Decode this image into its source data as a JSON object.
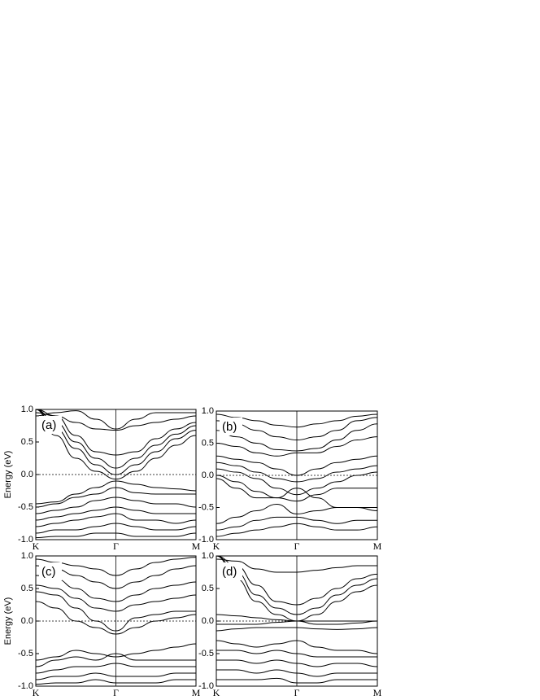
{
  "chart_data": [
    {
      "type": "line",
      "panel_label": "(a)",
      "ylabel": "Energy (eV)",
      "color": "#000000",
      "x": [
        0,
        0.25,
        0.5,
        0.75,
        1,
        1.25,
        1.5,
        1.75,
        2
      ],
      "xlim": [
        0,
        2
      ],
      "xticks": [
        {
          "value": 0,
          "label": "K"
        },
        {
          "value": 1,
          "label": "Γ"
        },
        {
          "value": 2,
          "label": "M"
        }
      ],
      "ylim": [
        -1,
        1
      ],
      "yticks": [
        {
          "value": -1,
          "label": "-1.0"
        },
        -0.5,
        {
          "value": 0,
          "label": "0.0"
        },
        0.5,
        {
          "value": 1,
          "label": "1.0"
        }
      ],
      "reference_line": 0,
      "series": [
        {
          "values": [
            1.0,
            0.6,
            0.25,
            0.05,
            -0.07,
            0.05,
            0.25,
            0.45,
            0.6
          ]
        },
        {
          "values": [
            1.0,
            0.7,
            0.4,
            0.15,
            0.0,
            0.15,
            0.35,
            0.55,
            0.68
          ]
        },
        {
          "values": [
            1.0,
            0.8,
            0.5,
            0.25,
            0.1,
            0.25,
            0.45,
            0.62,
            0.75
          ]
        },
        {
          "values": [
            1.0,
            0.9,
            0.6,
            0.35,
            0.3,
            0.35,
            0.55,
            0.7,
            0.8
          ]
        },
        {
          "values": [
            0.95,
            0.9,
            0.8,
            0.7,
            0.68,
            0.75,
            0.8,
            0.85,
            0.9
          ]
        },
        {
          "values": [
            0.9,
            0.95,
            0.98,
            0.85,
            0.7,
            0.85,
            0.95,
            0.95,
            0.95
          ]
        },
        {
          "values": [
            -0.45,
            -0.42,
            -0.3,
            -0.2,
            -0.1,
            -0.15,
            -0.2,
            -0.22,
            -0.25
          ]
        },
        {
          "values": [
            -0.5,
            -0.45,
            -0.35,
            -0.3,
            -0.2,
            -0.28,
            -0.3,
            -0.3,
            -0.3
          ]
        },
        {
          "values": [
            -0.6,
            -0.55,
            -0.5,
            -0.4,
            -0.35,
            -0.4,
            -0.45,
            -0.45,
            -0.5
          ]
        },
        {
          "values": [
            -0.7,
            -0.65,
            -0.6,
            -0.55,
            -0.5,
            -0.55,
            -0.6,
            -0.6,
            -0.6
          ]
        },
        {
          "values": [
            -0.8,
            -0.75,
            -0.7,
            -0.65,
            -0.6,
            -0.7,
            -0.7,
            -0.75,
            -0.7
          ]
        },
        {
          "values": [
            -0.9,
            -0.85,
            -0.85,
            -0.8,
            -0.75,
            -0.8,
            -0.85,
            -0.85,
            -0.8
          ]
        },
        {
          "values": [
            -0.97,
            -0.95,
            -0.95,
            -0.9,
            -0.9,
            -0.95,
            -0.95,
            -0.95,
            -0.9
          ]
        }
      ]
    },
    {
      "type": "line",
      "panel_label": "(b)",
      "color": "#000000",
      "x": [
        0,
        0.25,
        0.5,
        0.75,
        1,
        1.25,
        1.5,
        1.75,
        2
      ],
      "xlim": [
        0,
        2
      ],
      "xticks": [
        {
          "value": 0,
          "label": "K"
        },
        {
          "value": 1,
          "label": "Γ"
        },
        {
          "value": 2,
          "label": "M"
        }
      ],
      "ylim": [
        -1,
        1
      ],
      "yticks": [
        {
          "value": -1,
          "label": "-1.0"
        },
        -0.5,
        {
          "value": 0,
          "label": "0.0"
        },
        0.5,
        {
          "value": 1,
          "label": "1.0"
        }
      ],
      "reference_line": 0,
      "series": [
        {
          "values": [
            0.2,
            0.15,
            0.05,
            -0.05,
            -0.1,
            -0.05,
            0.05,
            0.1,
            0.15
          ]
        },
        {
          "values": [
            0.1,
            0.05,
            -0.05,
            -0.2,
            -0.3,
            -0.2,
            -0.1,
            0.0,
            0.05
          ]
        },
        {
          "values": [
            0.0,
            -0.1,
            -0.25,
            -0.35,
            -0.4,
            -0.3,
            -0.2,
            -0.2,
            -0.2
          ]
        },
        {
          "values": [
            -0.05,
            -0.2,
            -0.35,
            -0.35,
            -0.2,
            -0.35,
            -0.5,
            -0.5,
            -0.5
          ]
        },
        {
          "values": [
            0.3,
            0.25,
            0.2,
            0.1,
            0.0,
            0.1,
            0.2,
            0.25,
            0.3
          ]
        },
        {
          "values": [
            0.5,
            0.45,
            0.35,
            0.3,
            0.35,
            0.35,
            0.45,
            0.55,
            0.6
          ]
        },
        {
          "values": [
            0.7,
            0.6,
            0.5,
            0.4,
            0.38,
            0.42,
            0.55,
            0.7,
            0.8
          ]
        },
        {
          "values": [
            0.85,
            0.8,
            0.7,
            0.6,
            0.55,
            0.6,
            0.7,
            0.85,
            0.9
          ]
        },
        {
          "values": [
            0.95,
            0.9,
            0.85,
            0.78,
            0.75,
            0.8,
            0.85,
            0.92,
            0.95
          ]
        },
        {
          "values": [
            -0.75,
            -0.65,
            -0.55,
            -0.45,
            -0.6,
            -0.55,
            -0.5,
            -0.5,
            -0.55
          ]
        },
        {
          "values": [
            -0.85,
            -0.8,
            -0.7,
            -0.65,
            -0.65,
            -0.7,
            -0.75,
            -0.7,
            -0.7
          ]
        },
        {
          "values": [
            -0.95,
            -0.9,
            -0.85,
            -0.8,
            -0.75,
            -0.8,
            -0.85,
            -0.85,
            -0.8
          ]
        }
      ]
    },
    {
      "type": "line",
      "panel_label": "(c)",
      "ylabel": "Energy (eV)",
      "color": "#000000",
      "x": [
        0,
        0.25,
        0.5,
        0.75,
        1,
        1.25,
        1.5,
        1.75,
        2
      ],
      "xlim": [
        0,
        2
      ],
      "xticks": [
        {
          "value": 0,
          "label": "K"
        },
        {
          "value": 1,
          "label": "Γ"
        },
        {
          "value": 2,
          "label": "M"
        }
      ],
      "ylim": [
        -1,
        1
      ],
      "yticks": [
        {
          "value": -1,
          "label": "-1.0"
        },
        -0.5,
        {
          "value": 0,
          "label": "0.0"
        },
        0.5,
        {
          "value": 1,
          "label": "1.0"
        }
      ],
      "reference_line": 0,
      "series": [
        {
          "values": [
            0.3,
            0.2,
            0.0,
            -0.1,
            -0.2,
            -0.1,
            0.0,
            0.05,
            0.1
          ]
        },
        {
          "values": [
            0.45,
            0.4,
            0.2,
            0.0,
            -0.15,
            0.05,
            0.1,
            0.15,
            0.15
          ]
        },
        {
          "values": [
            0.55,
            0.5,
            0.35,
            0.2,
            0.15,
            0.25,
            0.3,
            0.35,
            0.4
          ]
        },
        {
          "values": [
            0.7,
            0.65,
            0.5,
            0.35,
            0.3,
            0.4,
            0.5,
            0.55,
            0.6
          ]
        },
        {
          "values": [
            0.85,
            0.8,
            0.7,
            0.6,
            0.5,
            0.6,
            0.7,
            0.8,
            0.85
          ]
        },
        {
          "values": [
            0.95,
            0.9,
            0.85,
            0.8,
            0.7,
            0.8,
            0.9,
            0.95,
            0.98
          ]
        },
        {
          "values": [
            -0.6,
            -0.55,
            -0.45,
            -0.5,
            -0.55,
            -0.5,
            -0.45,
            -0.4,
            -0.35
          ]
        },
        {
          "values": [
            -0.7,
            -0.6,
            -0.55,
            -0.6,
            -0.5,
            -0.6,
            -0.6,
            -0.6,
            -0.6
          ]
        },
        {
          "values": [
            -0.8,
            -0.75,
            -0.7,
            -0.7,
            -0.65,
            -0.7,
            -0.7,
            -0.7,
            -0.7
          ]
        },
        {
          "values": [
            -0.9,
            -0.85,
            -0.85,
            -0.8,
            -0.85,
            -0.85,
            -0.85,
            -0.8,
            -0.8
          ]
        },
        {
          "values": [
            -0.97,
            -0.95,
            -0.95,
            -0.9,
            -0.95,
            -0.95,
            -0.95,
            -0.9,
            -0.9
          ]
        }
      ]
    },
    {
      "type": "line",
      "panel_label": "(d)",
      "color": "#000000",
      "x": [
        0,
        0.25,
        0.5,
        0.75,
        1,
        1.25,
        1.5,
        1.75,
        2
      ],
      "xlim": [
        0,
        2
      ],
      "xticks": [
        {
          "value": 0,
          "label": "K"
        },
        {
          "value": 1,
          "label": "Γ"
        },
        {
          "value": 2,
          "label": "M"
        }
      ],
      "ylim": [
        -1,
        1
      ],
      "yticks": [
        {
          "value": -1,
          "label": "-1.0"
        },
        -0.5,
        {
          "value": 0,
          "label": "0.0"
        },
        0.5,
        {
          "value": 1,
          "label": "1.0"
        }
      ],
      "reference_line": 0,
      "series": [
        {
          "values": [
            1.0,
            0.65,
            0.3,
            0.1,
            0.0,
            0.1,
            0.3,
            0.45,
            0.55
          ]
        },
        {
          "values": [
            1.0,
            0.75,
            0.4,
            0.2,
            0.1,
            0.2,
            0.4,
            0.55,
            0.65
          ]
        },
        {
          "values": [
            1.0,
            0.85,
            0.55,
            0.3,
            0.25,
            0.35,
            0.5,
            0.65,
            0.72
          ]
        },
        {
          "values": [
            0.95,
            0.92,
            0.8,
            0.75,
            0.75,
            0.78,
            0.82,
            0.85,
            0.85
          ]
        },
        {
          "values": [
            0.1,
            0.08,
            0.05,
            0.02,
            0.0,
            0.0,
            0.0,
            0.0,
            0.0
          ]
        },
        {
          "values": [
            -0.05,
            -0.05,
            -0.05,
            -0.02,
            0.0,
            -0.05,
            -0.05,
            -0.03,
            0.0
          ]
        },
        {
          "values": [
            -0.15,
            -0.12,
            -0.1,
            -0.1,
            -0.1,
            -0.12,
            -0.13,
            -0.12,
            -0.1
          ]
        },
        {
          "values": [
            -0.3,
            -0.35,
            -0.4,
            -0.35,
            -0.3,
            -0.4,
            -0.45,
            -0.45,
            -0.5
          ]
        },
        {
          "values": [
            -0.45,
            -0.45,
            -0.5,
            -0.45,
            -0.5,
            -0.55,
            -0.55,
            -0.55,
            -0.55
          ]
        },
        {
          "values": [
            -0.6,
            -0.6,
            -0.65,
            -0.6,
            -0.65,
            -0.7,
            -0.65,
            -0.65,
            -0.7
          ]
        },
        {
          "values": [
            -0.75,
            -0.75,
            -0.8,
            -0.75,
            -0.8,
            -0.85,
            -0.8,
            -0.8,
            -0.8
          ]
        },
        {
          "values": [
            -0.9,
            -0.9,
            -0.9,
            -0.88,
            -0.95,
            -0.95,
            -0.9,
            -0.9,
            -0.9
          ]
        }
      ]
    }
  ]
}
